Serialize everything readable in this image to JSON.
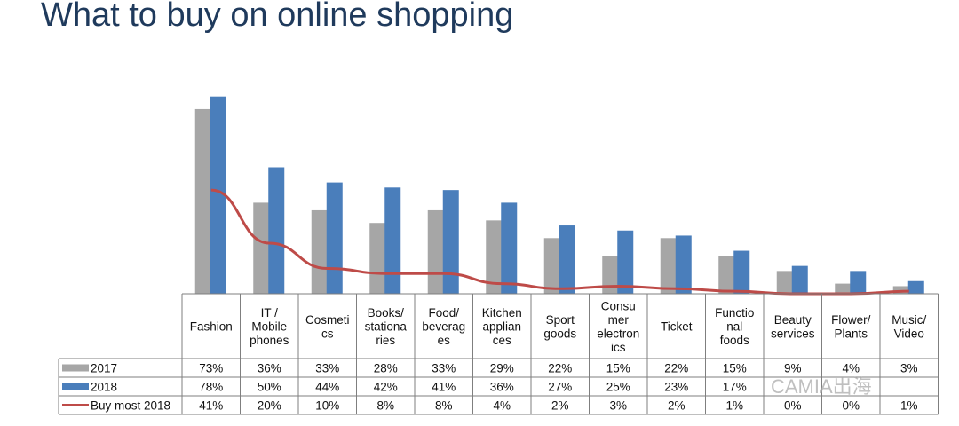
{
  "title": "What to buy on online shopping",
  "watermark": "CAMIA出海",
  "chart_data": {
    "type": "bar",
    "title": "What to buy on online shopping",
    "categories": [
      [
        "Fashion"
      ],
      [
        "IT /",
        "Mobile",
        "phones"
      ],
      [
        "Cosmeti",
        "cs"
      ],
      [
        "Books/",
        "stationa",
        "ries"
      ],
      [
        "Food/",
        "beverag",
        "es"
      ],
      [
        "Kitchen",
        "applian",
        "ces"
      ],
      [
        "Sport",
        "goods"
      ],
      [
        "Consu",
        "mer",
        "electron",
        "ics"
      ],
      [
        "Ticket"
      ],
      [
        "Functio",
        "nal",
        "foods"
      ],
      [
        "Beauty",
        "services"
      ],
      [
        "Flower/",
        "Plants"
      ],
      [
        "Music/",
        "Video"
      ]
    ],
    "series": [
      {
        "name": "2017",
        "kind": "bar",
        "color": "#a6a6a6",
        "values": [
          73,
          36,
          33,
          28,
          33,
          29,
          22,
          15,
          22,
          15,
          9,
          4,
          3
        ],
        "labels": [
          "73%",
          "36%",
          "33%",
          "28%",
          "33%",
          "29%",
          "22%",
          "15%",
          "22%",
          "15%",
          "9%",
          "4%",
          "3%"
        ]
      },
      {
        "name": "2018",
        "kind": "bar",
        "color": "#4a7ebb",
        "values": [
          78,
          50,
          44,
          42,
          41,
          36,
          27,
          25,
          23,
          17,
          11,
          9,
          5
        ],
        "labels": [
          "78%",
          "50%",
          "44%",
          "42%",
          "41%",
          "36%",
          "27%",
          "25%",
          "23%",
          "17%",
          "",
          "",
          ""
        ]
      },
      {
        "name": "Buy most 2018",
        "kind": "line",
        "color": "#be4b48",
        "values": [
          41,
          20,
          10,
          8,
          8,
          4,
          2,
          3,
          2,
          1,
          0,
          0,
          1
        ],
        "labels": [
          "41%",
          "20%",
          "10%",
          "8%",
          "8%",
          "4%",
          "2%",
          "3%",
          "2%",
          "1%",
          "0%",
          "0%",
          "1%"
        ]
      }
    ],
    "ylim": [
      0,
      80
    ],
    "legend": "data-table",
    "grid": false
  }
}
